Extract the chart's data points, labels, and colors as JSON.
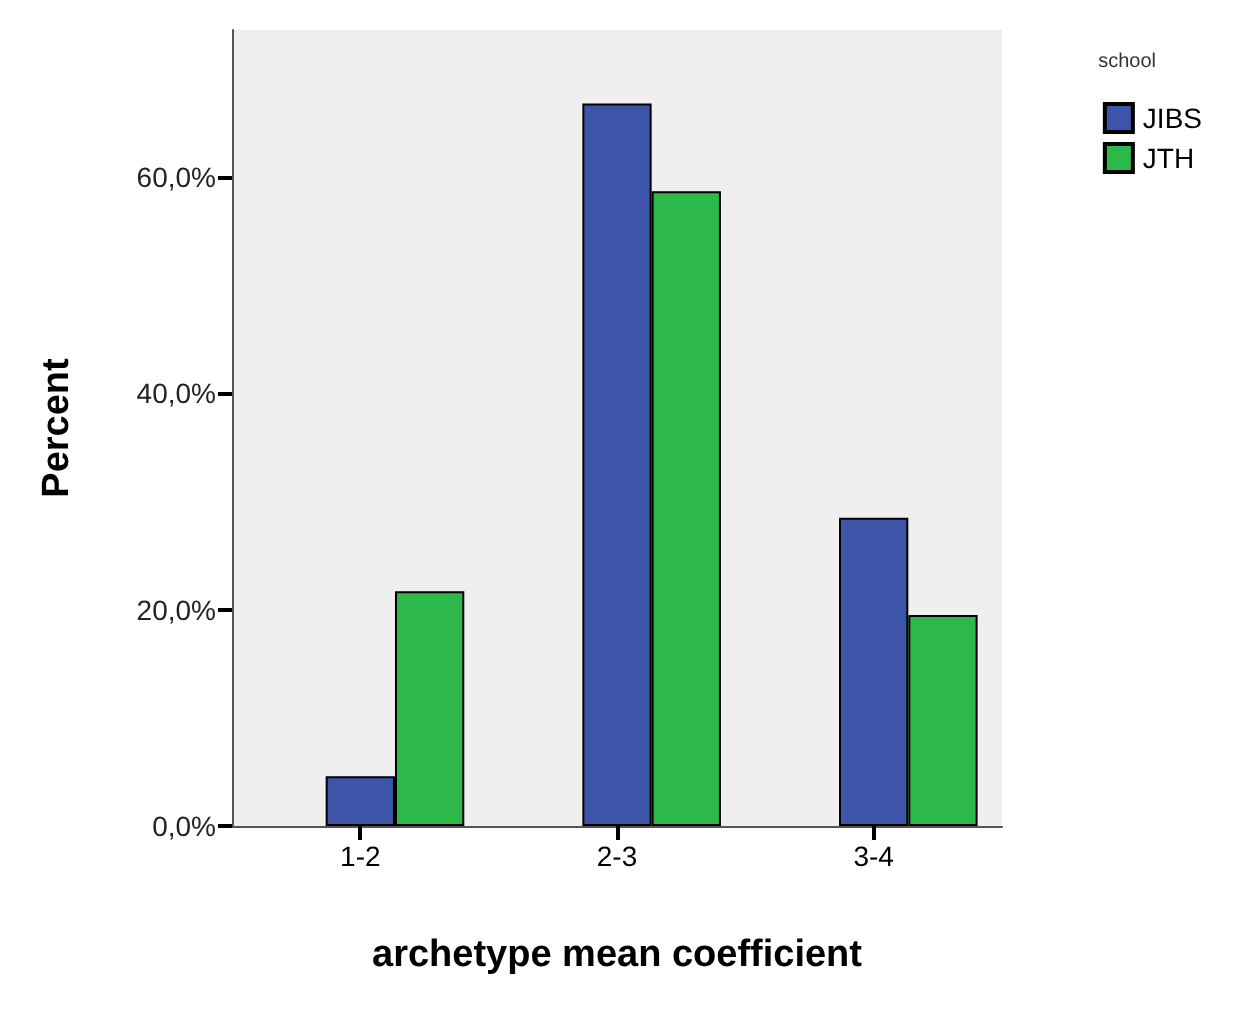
{
  "chart_data": {
    "type": "bar",
    "xlabel": "archetype mean coefficient",
    "ylabel": "Percent",
    "legend_title": "school",
    "categories": [
      "1-2",
      "2-3",
      "3-4"
    ],
    "series": [
      {
        "name": "JIBS",
        "color": "#3d55a9",
        "values": [
          4.6,
          66.8,
          28.5
        ]
      },
      {
        "name": "JTH",
        "color": "#2db84a",
        "values": [
          21.7,
          58.7,
          19.5
        ]
      }
    ],
    "ylim": [
      0,
      73.6
    ],
    "yticks": [
      {
        "value": 0,
        "label": "0,0%"
      },
      {
        "value": 20,
        "label": "20,0%"
      },
      {
        "value": 40,
        "label": "40,0%"
      },
      {
        "value": 60,
        "label": "60,0%"
      }
    ],
    "grid": false,
    "legend": "top right"
  }
}
